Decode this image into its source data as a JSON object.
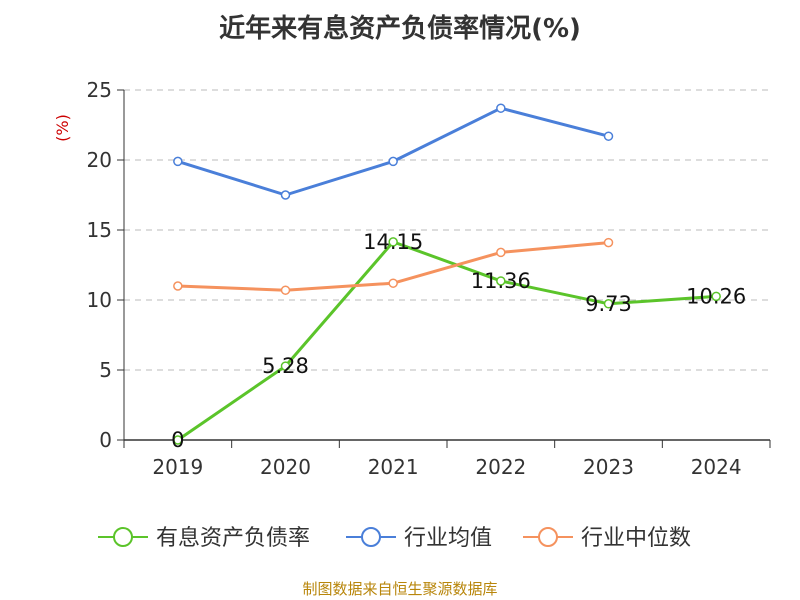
{
  "chart_data": {
    "type": "line",
    "title": "近年来有息资产负债率情况(%)",
    "ylabel": "(%)",
    "categories": [
      "2019",
      "2020",
      "2021",
      "2022",
      "2023",
      "2024"
    ],
    "ylim": [
      0,
      25
    ],
    "yticks": [
      0,
      5,
      10,
      15,
      20,
      25
    ],
    "grid": true,
    "legend_position": "bottom",
    "series": [
      {
        "name": "有息资产负债率",
        "color": "#5bc42a",
        "values": [
          0,
          5.28,
          14.15,
          11.36,
          9.73,
          10.26
        ],
        "data_labels": [
          "0",
          "5.28",
          "14.15",
          "11.36",
          "9.73",
          "10.26"
        ]
      },
      {
        "name": "行业均值",
        "color": "#4a7fd9",
        "values": [
          19.9,
          17.5,
          19.9,
          23.7,
          21.7,
          null
        ]
      },
      {
        "name": "行业中位数",
        "color": "#f5925e",
        "values": [
          11.0,
          10.7,
          11.2,
          13.4,
          14.1,
          null
        ]
      }
    ]
  },
  "footer": {
    "source": "制图数据来自恒生聚源数据库"
  }
}
